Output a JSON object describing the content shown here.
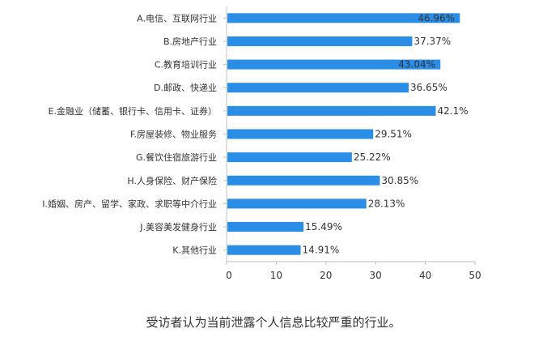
{
  "chart_data": {
    "type": "bar",
    "orientation": "horizontal",
    "categories": [
      "A.电信、互联网行业",
      "B.房地产行业",
      "C.教育培训行业",
      "D.邮政、快递业",
      "E.金融业（储蓄、银行卡、信用卡、证券）",
      "F.房屋装修、物业服务",
      "G.餐饮住宿旅游行业",
      "H.人身保险、财产保险",
      "I.婚姻、房产、留学、家政、求职等中介行业",
      "J.美容美发健身行业",
      "K.其他行业"
    ],
    "values": [
      46.96,
      37.37,
      43.04,
      36.65,
      42.1,
      29.51,
      25.22,
      30.85,
      28.13,
      15.49,
      14.91
    ],
    "value_labels": [
      "46.96%",
      "37.37%",
      "43.04%",
      "36.65%",
      "42.1%",
      "29.51%",
      "25.22%",
      "30.85%",
      "28.13%",
      "15.49%",
      "14.91%"
    ],
    "xlim": [
      0,
      50
    ],
    "xticks": [
      0,
      10,
      20,
      30,
      40,
      50
    ],
    "caption": "受访者认为当前泄露个人信息比较严重的行业。",
    "grid": false,
    "bar_color": "#2a8de6"
  }
}
